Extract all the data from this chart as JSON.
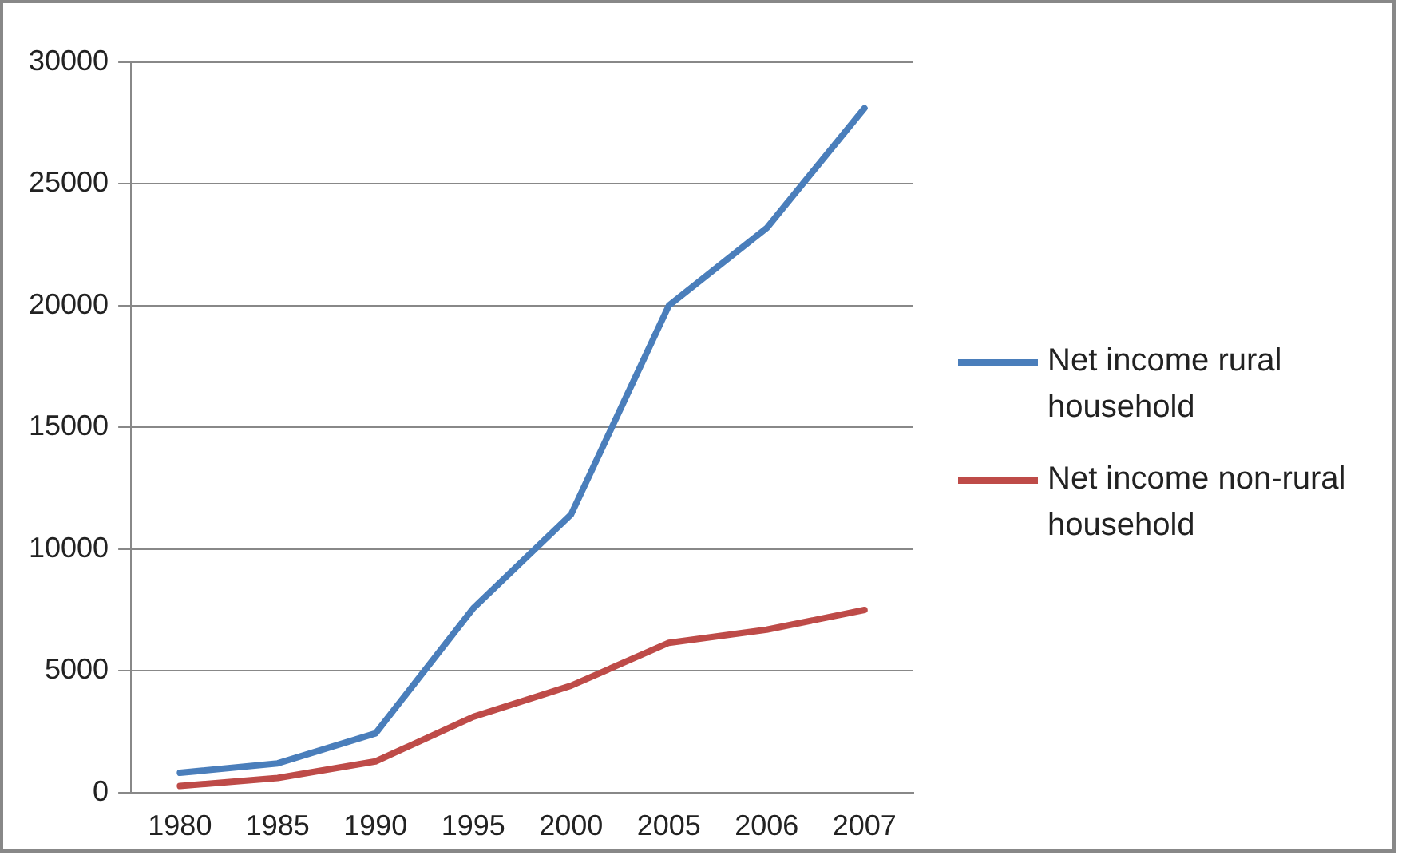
{
  "chart_data": {
    "type": "line",
    "categories": [
      "1980",
      "1985",
      "1990",
      "1995",
      "2000",
      "2005",
      "2006",
      "2007"
    ],
    "series": [
      {
        "name": "Net income rural household",
        "color": "#4a7ebb",
        "values": [
          810,
          1200,
          2430,
          7570,
          11420,
          20000,
          23180,
          28100
        ]
      },
      {
        "name": "Net income non-rural household",
        "color": "#be4b48",
        "values": [
          270,
          600,
          1280,
          3110,
          4390,
          6150,
          6690,
          7500
        ]
      }
    ],
    "ylim": [
      0,
      30000
    ],
    "yticks": [
      0,
      5000,
      10000,
      15000,
      20000,
      25000,
      30000
    ],
    "grid": "y",
    "legend": "right",
    "marker": "none",
    "line_style": "solid"
  }
}
